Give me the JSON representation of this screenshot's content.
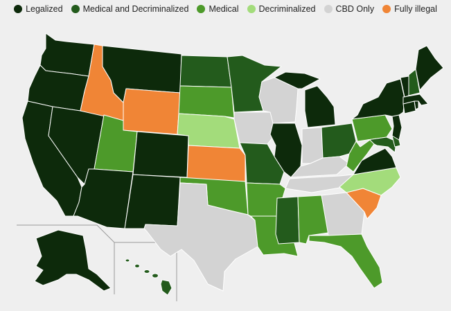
{
  "legend": [
    {
      "label": "Legalized",
      "color": "#0d2a0b",
      "icon": "filled-circle"
    },
    {
      "label": "Medical and Decriminalized",
      "color": "#235b1c",
      "icon": "filled-circle"
    },
    {
      "label": "Medical",
      "color": "#4d9a2a",
      "icon": "filled-circle"
    },
    {
      "label": "Decriminalized",
      "color": "#a3dc7b",
      "icon": "filled-circle"
    },
    {
      "label": "CBD Only",
      "color": "#d3d3d3",
      "icon": "filled-circle"
    },
    {
      "label": "Fully illegal",
      "color": "#f08536",
      "icon": "filled-circle"
    }
  ],
  "colors": {
    "legal": "#0d2a0b",
    "meddecrim": "#235b1c",
    "medical": "#4d9a2a",
    "decrim": "#a3dc7b",
    "cbd": "#d3d3d3",
    "illegal": "#f08536",
    "background": "#efefef",
    "border": "#ffffff"
  },
  "map_data": {
    "type": "choropleth",
    "states": [
      {
        "state": "Washington",
        "status": "legal"
      },
      {
        "state": "Oregon",
        "status": "legal"
      },
      {
        "state": "California",
        "status": "legal"
      },
      {
        "state": "Nevada",
        "status": "legal"
      },
      {
        "state": "Idaho",
        "status": "illegal"
      },
      {
        "state": "Montana",
        "status": "legal"
      },
      {
        "state": "Wyoming",
        "status": "illegal"
      },
      {
        "state": "Utah",
        "status": "medical"
      },
      {
        "state": "Arizona",
        "status": "legal"
      },
      {
        "state": "Colorado",
        "status": "legal"
      },
      {
        "state": "New Mexico",
        "status": "legal"
      },
      {
        "state": "North Dakota",
        "status": "meddecrim"
      },
      {
        "state": "South Dakota",
        "status": "medical"
      },
      {
        "state": "Nebraska",
        "status": "decrim"
      },
      {
        "state": "Kansas",
        "status": "illegal"
      },
      {
        "state": "Oklahoma",
        "status": "medical"
      },
      {
        "state": "Texas",
        "status": "cbd"
      },
      {
        "state": "Minnesota",
        "status": "meddecrim"
      },
      {
        "state": "Iowa",
        "status": "cbd"
      },
      {
        "state": "Missouri",
        "status": "meddecrim"
      },
      {
        "state": "Arkansas",
        "status": "medical"
      },
      {
        "state": "Louisiana",
        "status": "medical"
      },
      {
        "state": "Wisconsin",
        "status": "cbd"
      },
      {
        "state": "Illinois",
        "status": "legal"
      },
      {
        "state": "Michigan",
        "status": "legal"
      },
      {
        "state": "Indiana",
        "status": "cbd"
      },
      {
        "state": "Ohio",
        "status": "meddecrim"
      },
      {
        "state": "Kentucky",
        "status": "cbd"
      },
      {
        "state": "Tennessee",
        "status": "cbd"
      },
      {
        "state": "Mississippi",
        "status": "meddecrim"
      },
      {
        "state": "Alabama",
        "status": "medical"
      },
      {
        "state": "Georgia",
        "status": "cbd"
      },
      {
        "state": "Florida",
        "status": "medical"
      },
      {
        "state": "South Carolina",
        "status": "illegal"
      },
      {
        "state": "North Carolina",
        "status": "decrim"
      },
      {
        "state": "Virginia",
        "status": "legal"
      },
      {
        "state": "West Virginia",
        "status": "medical"
      },
      {
        "state": "Pennsylvania",
        "status": "medical"
      },
      {
        "state": "New York",
        "status": "legal"
      },
      {
        "state": "New Jersey",
        "status": "legal"
      },
      {
        "state": "Delaware",
        "status": "meddecrim"
      },
      {
        "state": "Maryland",
        "status": "meddecrim"
      },
      {
        "state": "Connecticut",
        "status": "legal"
      },
      {
        "state": "Rhode Island",
        "status": "legal"
      },
      {
        "state": "Massachusetts",
        "status": "legal"
      },
      {
        "state": "Vermont",
        "status": "legal"
      },
      {
        "state": "New Hampshire",
        "status": "meddecrim"
      },
      {
        "state": "Maine",
        "status": "legal"
      },
      {
        "state": "Alaska",
        "status": "legal"
      },
      {
        "state": "Hawaii",
        "status": "meddecrim"
      }
    ]
  }
}
